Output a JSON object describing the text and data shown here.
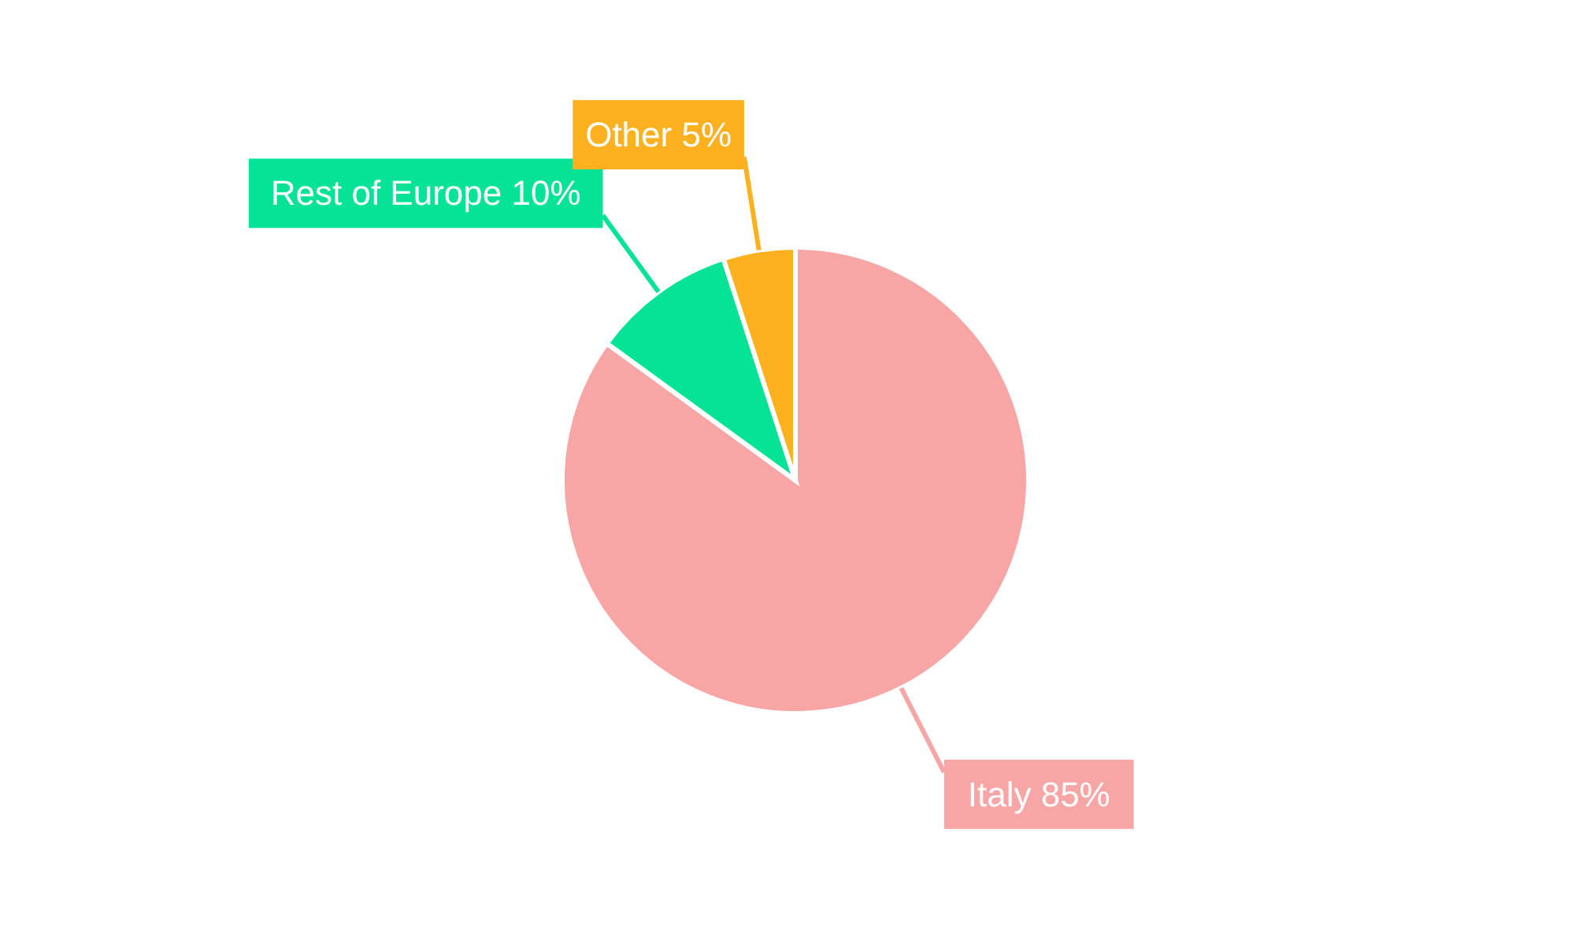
{
  "chart_data": {
    "type": "pie",
    "categories": [
      "Italy",
      "Rest of Europe",
      "Other"
    ],
    "values": [
      85,
      10,
      5
    ],
    "colors": [
      "#f8a5a6",
      "#05e396",
      "#fdb11f"
    ],
    "value_labels": [
      "85%",
      "10%",
      "5%"
    ]
  }
}
